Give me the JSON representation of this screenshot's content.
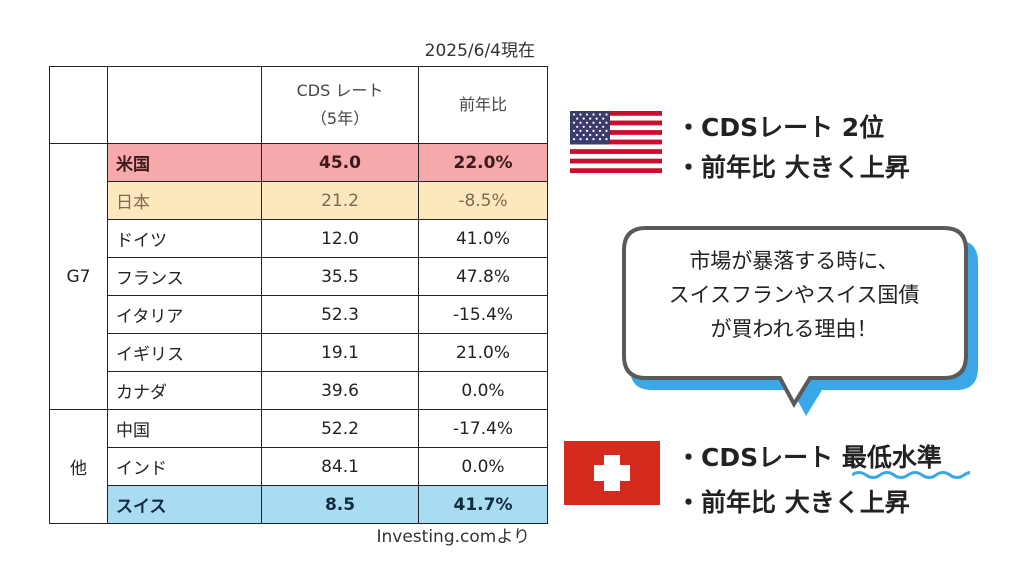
{
  "date_label": "2025/6/4現在",
  "source_label": "Investing.comより",
  "table": {
    "header": {
      "rate_line1": "CDS レート",
      "rate_line2": "（5年）",
      "yoy": "前年比"
    },
    "groups": [
      {
        "label": "G7",
        "rows": [
          {
            "name": "米国",
            "rate": "45.0",
            "yoy": "22.0%"
          },
          {
            "name": "日本",
            "rate": "21.2",
            "yoy": "-8.5%"
          },
          {
            "name": "ドイツ",
            "rate": "12.0",
            "yoy": "41.0%"
          },
          {
            "name": "フランス",
            "rate": "35.5",
            "yoy": "47.8%"
          },
          {
            "name": "イタリア",
            "rate": "52.3",
            "yoy": "-15.4%"
          },
          {
            "name": "イギリス",
            "rate": "19.1",
            "yoy": "21.0%"
          },
          {
            "name": "カナダ",
            "rate": "39.6",
            "yoy": "0.0%"
          }
        ]
      },
      {
        "label": "他",
        "rows": [
          {
            "name": "中国",
            "rate": "52.2",
            "yoy": "-17.4%"
          },
          {
            "name": "インド",
            "rate": "84.1",
            "yoy": "0.0%"
          },
          {
            "name": "スイス",
            "rate": "8.5",
            "yoy": "41.7%"
          }
        ]
      }
    ]
  },
  "us_notes": {
    "line1": "・CDSレート 2位",
    "line2": "・前年比 大きく上昇"
  },
  "speech_bubble": {
    "line1": "市場が暴落する時に、",
    "line2": "スイスフランやスイス国債",
    "line3": "が買われる理由！"
  },
  "swiss_notes": {
    "line1_prefix": "・CDSレート ",
    "line1_emphasis": "最低水準",
    "line2": "・前年比 大きく上昇"
  },
  "colors": {
    "us_row": "#f7a8ab",
    "jp_row": "#fde8bd",
    "ch_row": "#a9dcf2",
    "bubble_shadow": "#3aa7e6",
    "wavy_underline": "#3aa7e6",
    "swiss_red": "#d52b1e"
  },
  "icons": [
    "us-flag-icon",
    "swiss-flag-icon"
  ]
}
